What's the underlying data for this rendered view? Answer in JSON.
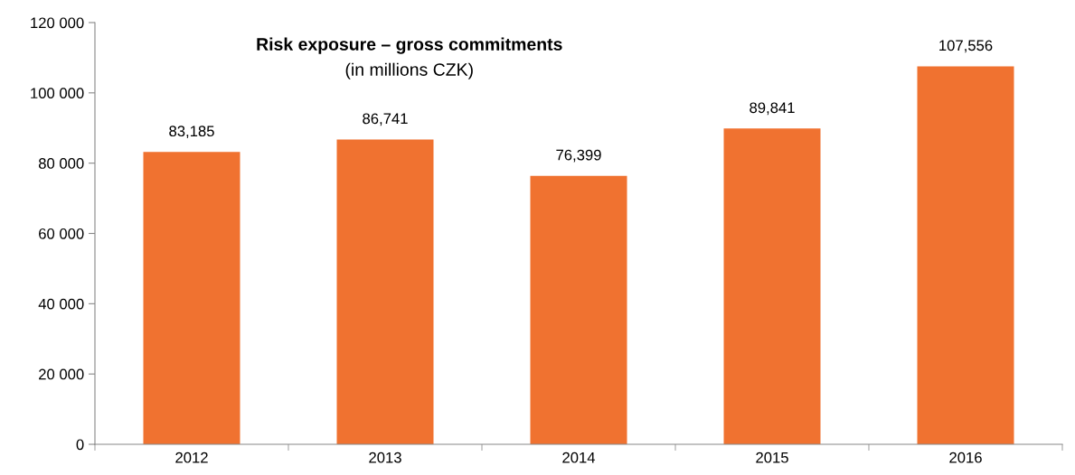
{
  "chart_data": {
    "type": "bar",
    "title": "Risk exposure – gross commitments",
    "subtitle": "(in millions CZK)",
    "categories": [
      "2012",
      "2013",
      "2014",
      "2015",
      "2016"
    ],
    "values": [
      83185,
      86741,
      76399,
      89841,
      107556
    ],
    "value_labels": [
      "83,185",
      "86,741",
      "76,399",
      "89,841",
      "107,556"
    ],
    "color": "#f07230",
    "ylim": [
      0,
      120000
    ],
    "yticks": [
      {
        "value": 0,
        "label": "0"
      },
      {
        "value": 20000,
        "label": "20 000"
      },
      {
        "value": 40000,
        "label": "40 000"
      },
      {
        "value": 60000,
        "label": "60 000"
      },
      {
        "value": 80000,
        "label": "80 000"
      },
      {
        "value": 100000,
        "label": "100 000"
      },
      {
        "value": 120000,
        "label": "120 000"
      }
    ],
    "grid": false,
    "legend": false
  }
}
